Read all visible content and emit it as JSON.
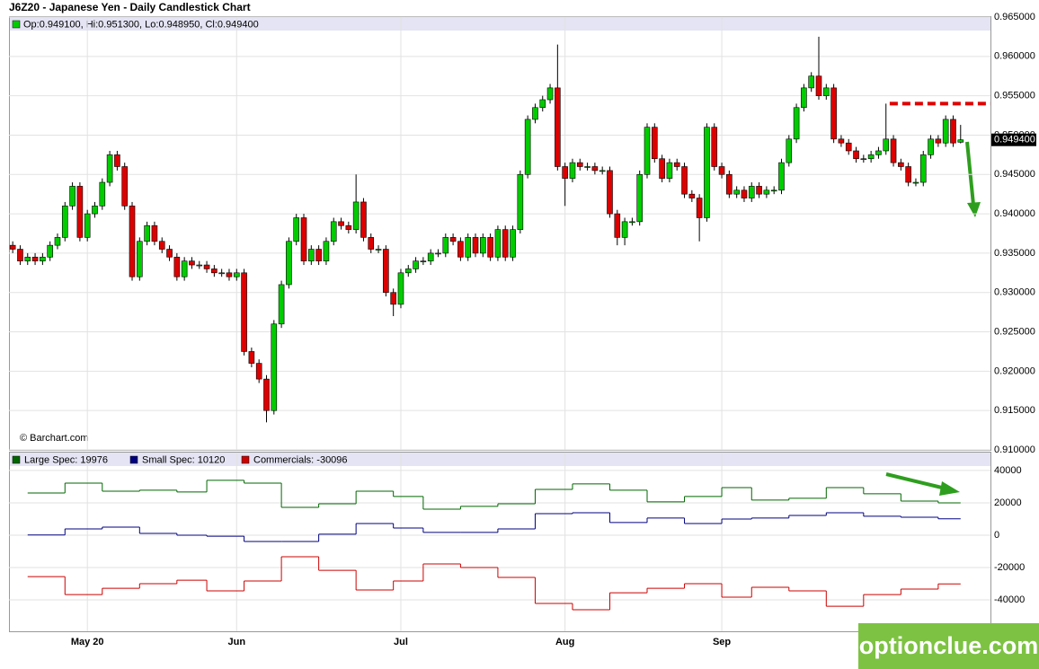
{
  "chart_data": [
    {
      "type": "candlestick",
      "title": "J6Z20 - Japanese Yen - Daily Candlestick Chart",
      "legend": "Op:0.949100, Hi:0.951300, Lo:0.948950, Cl:0.949400",
      "credit": "© Barchart.com",
      "last_label": "0.949400",
      "up_color": "#00cc00",
      "down_color": "#dd0000",
      "level": 0.954,
      "level_color": "#e00000",
      "xlim": [
        -0.5,
        131
      ],
      "ylim": [
        0.91,
        0.965
      ],
      "yticks": [
        {
          "value": 0.91,
          "label": "0.910000"
        },
        {
          "value": 0.915,
          "label": "0.915000"
        },
        {
          "value": 0.92,
          "label": "0.920000"
        },
        {
          "value": 0.925,
          "label": "0.925000"
        },
        {
          "value": 0.93,
          "label": "0.930000"
        },
        {
          "value": 0.935,
          "label": "0.935000"
        },
        {
          "value": 0.94,
          "label": "0.940000"
        },
        {
          "value": 0.945,
          "label": "0.945000"
        },
        {
          "value": 0.95,
          "label": "0.950000"
        },
        {
          "value": 0.955,
          "label": "0.955000"
        },
        {
          "value": 0.96,
          "label": "0.960000"
        },
        {
          "value": 0.965,
          "label": "0.965000"
        }
      ],
      "grid": true,
      "open": [
        0.936,
        0.9355,
        0.934,
        0.9345,
        0.934,
        0.9345,
        0.936,
        0.937,
        0.941,
        0.9435,
        0.937,
        0.94,
        0.941,
        0.944,
        0.9475,
        0.946,
        0.941,
        0.932,
        0.9365,
        0.9385,
        0.9365,
        0.9355,
        0.9345,
        0.932,
        0.934,
        0.9335,
        0.9335,
        0.933,
        0.9325,
        0.9325,
        0.932,
        0.9325,
        0.9225,
        0.921,
        0.919,
        0.915,
        0.926,
        0.931,
        0.9365,
        0.9395,
        0.934,
        0.9355,
        0.934,
        0.9365,
        0.939,
        0.9385,
        0.938,
        0.9415,
        0.937,
        0.9355,
        0.9355,
        0.93,
        0.9285,
        0.9325,
        0.933,
        0.934,
        0.934,
        0.935,
        0.935,
        0.937,
        0.9365,
        0.9345,
        0.937,
        0.935,
        0.937,
        0.9345,
        0.938,
        0.9345,
        0.938,
        0.945,
        0.952,
        0.9535,
        0.9545,
        0.956,
        0.946,
        0.9445,
        0.9465,
        0.946,
        0.946,
        0.9455,
        0.9455,
        0.94,
        0.937,
        0.939,
        0.939,
        0.945,
        0.951,
        0.947,
        0.9445,
        0.9465,
        0.946,
        0.9425,
        0.942,
        0.9395,
        0.951,
        0.946,
        0.945,
        0.9425,
        0.943,
        0.942,
        0.9435,
        0.9425,
        0.943,
        0.943,
        0.9465,
        0.9495,
        0.9535,
        0.956,
        0.9575,
        0.955,
        0.956,
        0.9495,
        0.949,
        0.948,
        0.947,
        0.947,
        0.9475,
        0.948,
        0.9495,
        0.9465,
        0.946,
        0.944,
        0.944,
        0.9475,
        0.9495,
        0.949,
        0.952,
        0.9491
      ],
      "high": [
        0.9365,
        0.936,
        0.935,
        0.935,
        0.935,
        0.9365,
        0.9375,
        0.9415,
        0.944,
        0.944,
        0.9405,
        0.9415,
        0.9445,
        0.948,
        0.948,
        0.9465,
        0.9415,
        0.937,
        0.939,
        0.939,
        0.937,
        0.936,
        0.935,
        0.9345,
        0.9345,
        0.934,
        0.934,
        0.9335,
        0.933,
        0.933,
        0.933,
        0.933,
        0.923,
        0.9215,
        0.9195,
        0.9265,
        0.9315,
        0.937,
        0.94,
        0.94,
        0.936,
        0.936,
        0.937,
        0.9395,
        0.9395,
        0.939,
        0.945,
        0.942,
        0.9375,
        0.936,
        0.936,
        0.9305,
        0.933,
        0.9335,
        0.9345,
        0.9345,
        0.9355,
        0.9355,
        0.9375,
        0.9375,
        0.937,
        0.9375,
        0.9375,
        0.9375,
        0.9375,
        0.9385,
        0.9385,
        0.9385,
        0.9455,
        0.9525,
        0.954,
        0.955,
        0.9565,
        0.9615,
        0.9465,
        0.947,
        0.947,
        0.9465,
        0.9465,
        0.946,
        0.946,
        0.9405,
        0.9395,
        0.9395,
        0.9455,
        0.9515,
        0.9515,
        0.9475,
        0.947,
        0.947,
        0.9465,
        0.943,
        0.9425,
        0.9515,
        0.9515,
        0.9465,
        0.9455,
        0.9435,
        0.9435,
        0.944,
        0.944,
        0.9435,
        0.9435,
        0.947,
        0.95,
        0.954,
        0.9565,
        0.958,
        0.9625,
        0.9565,
        0.9565,
        0.95,
        0.9495,
        0.9485,
        0.9475,
        0.948,
        0.9485,
        0.954,
        0.95,
        0.947,
        0.9465,
        0.9445,
        0.948,
        0.95,
        0.95,
        0.9525,
        0.9525,
        0.9513
      ],
      "low": [
        0.935,
        0.9335,
        0.9335,
        0.9335,
        0.9335,
        0.934,
        0.9355,
        0.9365,
        0.9405,
        0.9365,
        0.9365,
        0.9395,
        0.9405,
        0.9435,
        0.9455,
        0.9405,
        0.9315,
        0.9315,
        0.936,
        0.936,
        0.935,
        0.934,
        0.9315,
        0.9315,
        0.933,
        0.933,
        0.9325,
        0.932,
        0.932,
        0.9315,
        0.9315,
        0.922,
        0.9205,
        0.9185,
        0.9135,
        0.9145,
        0.9255,
        0.9305,
        0.936,
        0.9335,
        0.9335,
        0.9335,
        0.9335,
        0.936,
        0.938,
        0.9375,
        0.9375,
        0.9365,
        0.935,
        0.935,
        0.9295,
        0.927,
        0.928,
        0.932,
        0.9325,
        0.9335,
        0.9335,
        0.9345,
        0.9345,
        0.936,
        0.934,
        0.934,
        0.9345,
        0.9345,
        0.934,
        0.934,
        0.934,
        0.934,
        0.9375,
        0.9445,
        0.9515,
        0.953,
        0.954,
        0.9455,
        0.941,
        0.944,
        0.9455,
        0.9455,
        0.945,
        0.945,
        0.9395,
        0.936,
        0.936,
        0.9385,
        0.9385,
        0.9445,
        0.9465,
        0.944,
        0.944,
        0.9455,
        0.942,
        0.9415,
        0.9365,
        0.939,
        0.9455,
        0.9445,
        0.942,
        0.942,
        0.9415,
        0.9415,
        0.942,
        0.942,
        0.9425,
        0.9425,
        0.946,
        0.949,
        0.953,
        0.9555,
        0.9545,
        0.9545,
        0.949,
        0.9485,
        0.9475,
        0.9465,
        0.9465,
        0.9465,
        0.947,
        0.9475,
        0.946,
        0.9455,
        0.9435,
        0.9435,
        0.9435,
        0.947,
        0.9485,
        0.9485,
        0.9485,
        0.94895
      ],
      "close": [
        0.9355,
        0.934,
        0.9345,
        0.934,
        0.9345,
        0.936,
        0.937,
        0.941,
        0.9435,
        0.937,
        0.94,
        0.941,
        0.944,
        0.9475,
        0.946,
        0.941,
        0.932,
        0.9365,
        0.9385,
        0.9365,
        0.9355,
        0.9345,
        0.932,
        0.934,
        0.9335,
        0.9335,
        0.933,
        0.9325,
        0.9325,
        0.932,
        0.9325,
        0.9225,
        0.921,
        0.919,
        0.915,
        0.926,
        0.931,
        0.9365,
        0.9395,
        0.934,
        0.9355,
        0.934,
        0.9365,
        0.939,
        0.9385,
        0.938,
        0.9415,
        0.937,
        0.9355,
        0.9355,
        0.93,
        0.9285,
        0.9325,
        0.933,
        0.934,
        0.934,
        0.935,
        0.935,
        0.937,
        0.9365,
        0.9345,
        0.937,
        0.935,
        0.937,
        0.9345,
        0.938,
        0.9345,
        0.938,
        0.945,
        0.952,
        0.9535,
        0.9545,
        0.956,
        0.946,
        0.9445,
        0.9465,
        0.946,
        0.946,
        0.9455,
        0.9455,
        0.94,
        0.937,
        0.939,
        0.939,
        0.945,
        0.951,
        0.947,
        0.9445,
        0.9465,
        0.946,
        0.9425,
        0.942,
        0.9395,
        0.951,
        0.946,
        0.945,
        0.9425,
        0.943,
        0.942,
        0.9435,
        0.9425,
        0.943,
        0.943,
        0.9465,
        0.9495,
        0.9535,
        0.956,
        0.9575,
        0.955,
        0.956,
        0.9495,
        0.949,
        0.948,
        0.947,
        0.947,
        0.9475,
        0.948,
        0.9495,
        0.9465,
        0.946,
        0.944,
        0.944,
        0.9475,
        0.9495,
        0.949,
        0.952,
        0.949,
        0.9494
      ]
    },
    {
      "type": "line",
      "step": true,
      "xlim": [
        -0.5,
        131
      ],
      "xticks": [
        {
          "value": 10,
          "label": "May 20"
        },
        {
          "value": 30,
          "label": "Jun"
        },
        {
          "value": 52,
          "label": "Jul"
        },
        {
          "value": 74,
          "label": "Aug"
        },
        {
          "value": 95,
          "label": "Sep"
        }
      ],
      "ylim": [
        -59400,
        50500
      ],
      "yticks": [
        40000,
        20000,
        0,
        -20000,
        -40000
      ],
      "grid": true,
      "x": [
        2,
        7,
        12,
        17,
        22,
        26,
        31,
        36,
        41,
        46,
        51,
        55,
        60,
        65,
        70,
        75,
        80,
        85,
        90,
        95,
        99,
        104,
        109,
        114,
        119,
        124
      ],
      "series": [
        {
          "name": "Large Spec: 19976",
          "color": "#006600",
          "values": [
            26100,
            32200,
            27200,
            27800,
            26700,
            33900,
            32200,
            17200,
            19400,
            27200,
            23900,
            16100,
            17800,
            19400,
            28300,
            31700,
            27800,
            20600,
            23900,
            29400,
            21700,
            22800,
            29400,
            25600,
            21100,
            19976
          ]
        },
        {
          "name": "Small Spec: 10120",
          "color": "#000080",
          "values": [
            100,
            3900,
            5000,
            1100,
            0,
            -600,
            -3900,
            -3900,
            600,
            7200,
            4400,
            1700,
            1700,
            3900,
            13300,
            13900,
            7800,
            10600,
            7200,
            10000,
            10600,
            12200,
            13900,
            11700,
            11100,
            10120
          ]
        },
        {
          "name": "Commercials: -30096",
          "color": "#cc0000",
          "values": [
            -25600,
            -36700,
            -32800,
            -30000,
            -27800,
            -34400,
            -28300,
            -13300,
            -21700,
            -33900,
            -28300,
            -17800,
            -20000,
            -26100,
            -42200,
            -46100,
            -35600,
            -32800,
            -30000,
            -38300,
            -32200,
            -34400,
            -43900,
            -36700,
            -33300,
            -30096
          ]
        }
      ]
    }
  ]
}
